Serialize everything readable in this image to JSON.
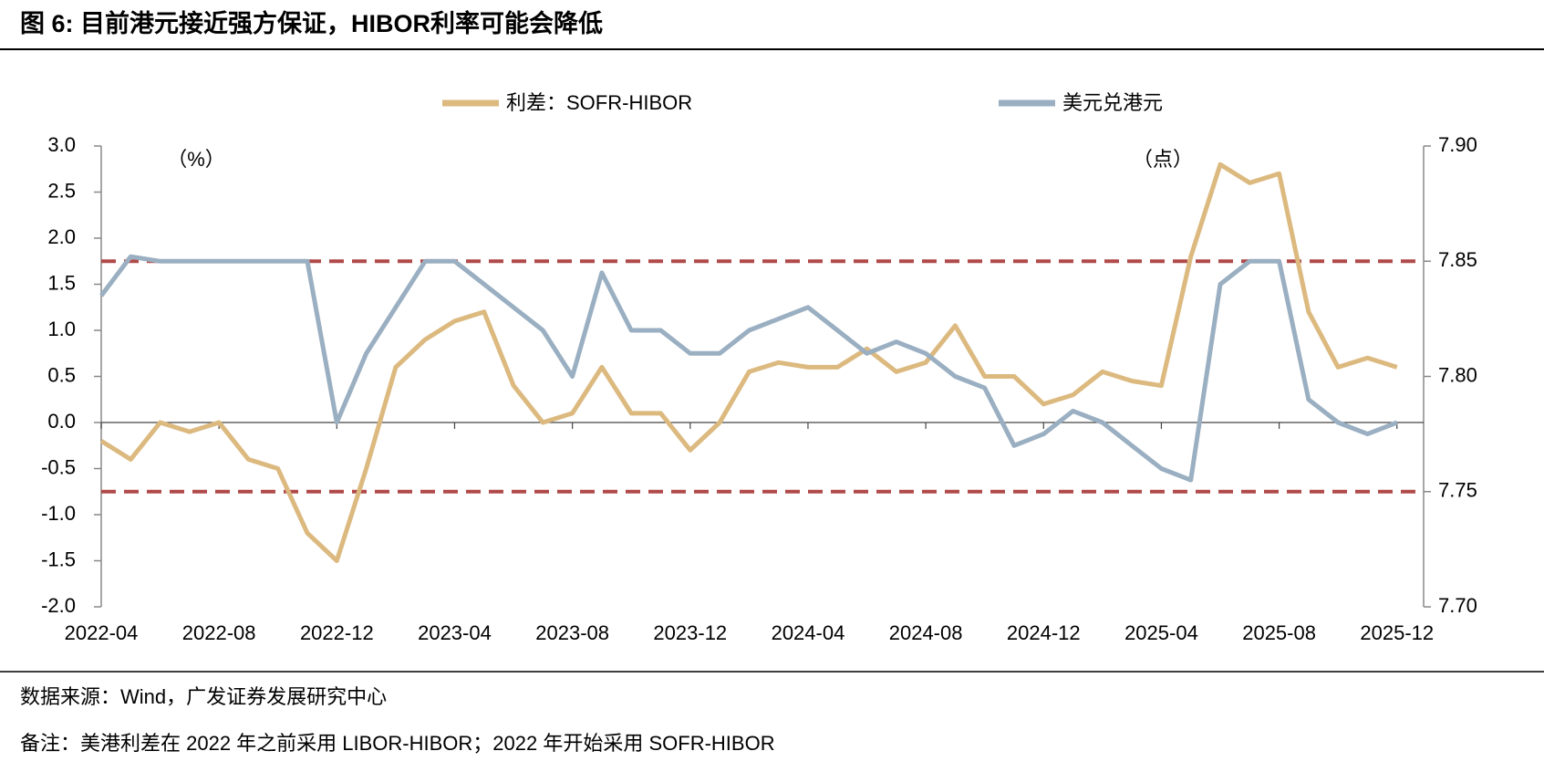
{
  "chart_data": {
    "type": "line",
    "title": "图 6: 目前港元接近强方保证，HIBOR利率可能会降低",
    "y_unit": "（%）",
    "y2_unit": "（点）",
    "source": "数据来源：Wind，广发证券发展研究中心",
    "note": "备注：美港利差在 2022 年之前采用 LIBOR-HIBOR；2022 年开始采用 SOFR-HIBOR",
    "categories": [
      "2022-04",
      "2022-05",
      "2022-06",
      "2022-07",
      "2022-08",
      "2022-09",
      "2022-10",
      "2022-11",
      "2022-12",
      "2023-01",
      "2023-02",
      "2023-03",
      "2023-04",
      "2023-05",
      "2023-06",
      "2023-07",
      "2023-08",
      "2023-09",
      "2023-10",
      "2023-11",
      "2023-12",
      "2024-01",
      "2024-02",
      "2024-03",
      "2024-04",
      "2024-05",
      "2024-06",
      "2024-07",
      "2024-08",
      "2024-09",
      "2024-10",
      "2024-11",
      "2024-12",
      "2025-01",
      "2025-02",
      "2025-03",
      "2025-04",
      "2025-05",
      "2025-06",
      "2025-07",
      "2025-08",
      "2025-09",
      "2025-10",
      "2025-11",
      "2025-12"
    ],
    "xticks": [
      "2022-04",
      "2022-08",
      "2022-12",
      "2023-04",
      "2023-08",
      "2023-12",
      "2024-04",
      "2024-08",
      "2024-12",
      "2025-04",
      "2025-08",
      "2025-12"
    ],
    "series": [
      {
        "name": "利差：SOFR-HIBOR",
        "color": "#dcb97f",
        "values": [
          -0.2,
          -0.4,
          0.0,
          -0.1,
          0.0,
          -0.4,
          -0.5,
          -1.2,
          -1.5,
          -0.5,
          0.6,
          0.9,
          1.1,
          1.2,
          0.4,
          0.0,
          0.1,
          0.6,
          0.1,
          0.1,
          -0.3,
          0.0,
          0.55,
          0.65,
          0.6,
          0.6,
          0.8,
          0.55,
          0.65,
          1.05,
          0.5,
          0.5,
          0.2,
          0.3,
          0.55,
          0.45,
          0.4,
          1.8,
          2.8,
          2.6,
          2.7,
          1.2,
          0.6,
          0.7,
          0.6
        ]
      },
      {
        "name": "美元兑港元",
        "color": "#9aafc1",
        "axis": "y2",
        "values": [
          7.835,
          7.852,
          7.85,
          7.85,
          7.85,
          7.85,
          7.85,
          7.85,
          7.78,
          7.81,
          7.83,
          7.85,
          7.85,
          7.84,
          7.83,
          7.82,
          7.8,
          7.845,
          7.82,
          7.82,
          7.81,
          7.81,
          7.82,
          7.825,
          7.83,
          7.82,
          7.81,
          7.815,
          7.81,
          7.8,
          7.795,
          7.77,
          7.775,
          7.785,
          7.78,
          7.77,
          7.76,
          7.755,
          7.84,
          7.85,
          7.85,
          7.79,
          7.78,
          7.775,
          7.78
        ]
      }
    ],
    "ylim": [
      -2.0,
      3.0
    ],
    "yticks": [
      {
        "value": -2.0,
        "label": "-2.0"
      },
      {
        "value": -1.5,
        "label": "-1.5"
      },
      {
        "value": -1.0,
        "label": "-1.0"
      },
      {
        "value": -0.5,
        "label": "-0.5"
      },
      {
        "value": 0.0,
        "label": "0.0"
      },
      {
        "value": 0.5,
        "label": "0.5"
      },
      {
        "value": 1.0,
        "label": "1.0"
      },
      {
        "value": 1.5,
        "label": "1.5"
      },
      {
        "value": 2.0,
        "label": "2.0"
      },
      {
        "value": 2.5,
        "label": "2.5"
      },
      {
        "value": 3.0,
        "label": "3.0"
      }
    ],
    "y2lim": [
      7.7,
      7.9
    ],
    "y2ticks": [
      {
        "value": 7.7,
        "label": "7.70"
      },
      {
        "value": 7.75,
        "label": "7.75"
      },
      {
        "value": 7.8,
        "label": "7.80"
      },
      {
        "value": 7.85,
        "label": "7.85"
      },
      {
        "value": 7.9,
        "label": "7.90"
      }
    ],
    "reference_lines_y2": [
      7.85,
      7.75
    ],
    "reference_color": "#b04a4a",
    "legend": "top"
  }
}
